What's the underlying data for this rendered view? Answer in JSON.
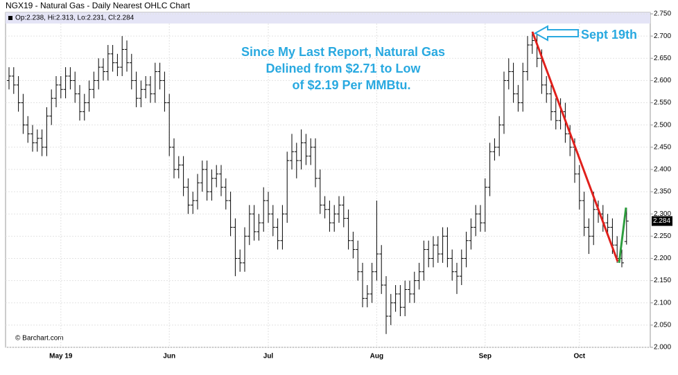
{
  "chart_data": {
    "type": "ohlc",
    "title": "NGX19 - Natural Gas - Daily Nearest OHLC Chart",
    "info": "Op:2.238, Hi:2.313, Lo:2.231, Cl:2.284",
    "credit": "© Barchart.com",
    "annotations": [
      "Since My Last Report, Natural Gas",
      "Delined from $2.71 to Low",
      "of $2.19 Per MMBtu.",
      "Sept 19th"
    ],
    "categories": [
      null,
      null,
      null,
      null,
      null,
      null,
      null,
      null,
      null,
      null,
      null,
      "May 19",
      null,
      null,
      null,
      null,
      null,
      null,
      null,
      null,
      null,
      null,
      null,
      null,
      null,
      null,
      null,
      null,
      null,
      null,
      null,
      null,
      null,
      null,
      "Jun",
      null,
      null,
      null,
      null,
      null,
      null,
      null,
      null,
      null,
      null,
      null,
      null,
      null,
      null,
      null,
      null,
      null,
      null,
      null,
      null,
      "Jul",
      null,
      null,
      null,
      null,
      null,
      null,
      null,
      null,
      null,
      null,
      null,
      null,
      null,
      null,
      null,
      null,
      null,
      null,
      null,
      null,
      null,
      null,
      "Aug",
      null,
      null,
      null,
      null,
      null,
      null,
      null,
      null,
      null,
      null,
      null,
      null,
      null,
      null,
      null,
      null,
      null,
      null,
      null,
      null,
      null,
      null,
      "Sep",
      null,
      null,
      null,
      null,
      null,
      null,
      null,
      null,
      null,
      null,
      null,
      null,
      null,
      null,
      null,
      null,
      null,
      null,
      null,
      "Oct",
      null,
      null,
      null,
      null,
      null,
      null,
      null,
      null,
      null,
      null
    ],
    "open": [
      2.6,
      2.61,
      2.59,
      2.55,
      2.5,
      2.48,
      2.46,
      2.47,
      2.45,
      2.52,
      2.56,
      2.59,
      2.58,
      2.61,
      2.6,
      2.57,
      2.53,
      2.55,
      2.58,
      2.6,
      2.63,
      2.62,
      2.66,
      2.64,
      2.63,
      2.67,
      2.64,
      2.6,
      2.56,
      2.58,
      2.59,
      2.57,
      2.62,
      2.6,
      2.55,
      2.45,
      2.4,
      2.41,
      2.36,
      2.32,
      2.33,
      2.37,
      2.4,
      2.35,
      2.38,
      2.39,
      2.36,
      2.33,
      2.27,
      2.2,
      2.19,
      2.25,
      2.3,
      2.26,
      2.28,
      2.33,
      2.3,
      2.27,
      2.24,
      2.3,
      2.42,
      2.44,
      2.42,
      2.46,
      2.43,
      2.45,
      2.38,
      2.32,
      2.31,
      2.28,
      2.3,
      2.32,
      2.29,
      2.24,
      2.22,
      2.17,
      2.11,
      2.12,
      2.17,
      2.21,
      2.14,
      2.07,
      2.1,
      2.12,
      2.09,
      2.13,
      2.12,
      2.15,
      2.17,
      2.22,
      2.2,
      2.23,
      2.21,
      2.25,
      2.2,
      2.17,
      2.16,
      2.2,
      2.24,
      2.27,
      2.3,
      2.28,
      2.36,
      2.44,
      2.45,
      2.5,
      2.6,
      2.62,
      2.57,
      2.55,
      2.62,
      2.68,
      2.69,
      2.65,
      2.59,
      2.57,
      2.53,
      2.51,
      2.53,
      2.48,
      2.45,
      2.39,
      2.33,
      2.27,
      2.25,
      2.31,
      2.3,
      2.28,
      2.27,
      2.23,
      2.2,
      2.238
    ],
    "high": [
      2.63,
      2.63,
      2.61,
      2.57,
      2.52,
      2.5,
      2.49,
      2.49,
      2.54,
      2.58,
      2.61,
      2.61,
      2.63,
      2.63,
      2.62,
      2.59,
      2.57,
      2.6,
      2.62,
      2.65,
      2.65,
      2.68,
      2.68,
      2.66,
      2.7,
      2.69,
      2.66,
      2.62,
      2.6,
      2.61,
      2.61,
      2.64,
      2.64,
      2.62,
      2.57,
      2.47,
      2.43,
      2.43,
      2.38,
      2.35,
      2.39,
      2.42,
      2.42,
      2.4,
      2.41,
      2.41,
      2.38,
      2.35,
      2.29,
      2.22,
      2.27,
      2.32,
      2.32,
      2.3,
      2.36,
      2.35,
      2.32,
      2.29,
      2.32,
      2.44,
      2.48,
      2.46,
      2.49,
      2.48,
      2.47,
      2.47,
      2.4,
      2.34,
      2.33,
      2.32,
      2.34,
      2.34,
      2.31,
      2.26,
      2.24,
      2.19,
      2.14,
      2.19,
      2.33,
      2.23,
      2.16,
      2.12,
      2.14,
      2.14,
      2.15,
      2.15,
      2.17,
      2.19,
      2.24,
      2.24,
      2.25,
      2.25,
      2.27,
      2.27,
      2.22,
      2.19,
      2.22,
      2.26,
      2.29,
      2.32,
      2.32,
      2.38,
      2.46,
      2.47,
      2.52,
      2.62,
      2.65,
      2.64,
      2.59,
      2.64,
      2.7,
      2.71,
      2.71,
      2.67,
      2.61,
      2.59,
      2.56,
      2.56,
      2.55,
      2.5,
      2.47,
      2.41,
      2.35,
      2.29,
      2.35,
      2.33,
      2.32,
      2.3,
      2.29,
      2.25,
      2.22,
      2.313
    ],
    "low": [
      2.58,
      2.57,
      2.53,
      2.48,
      2.46,
      2.44,
      2.44,
      2.43,
      2.43,
      2.5,
      2.54,
      2.56,
      2.56,
      2.58,
      2.55,
      2.51,
      2.51,
      2.53,
      2.56,
      2.58,
      2.6,
      2.6,
      2.62,
      2.61,
      2.61,
      2.62,
      2.58,
      2.54,
      2.54,
      2.56,
      2.55,
      2.55,
      2.58,
      2.53,
      2.43,
      2.38,
      2.38,
      2.34,
      2.3,
      2.3,
      2.31,
      2.35,
      2.33,
      2.33,
      2.36,
      2.34,
      2.31,
      2.25,
      2.16,
      2.17,
      2.17,
      2.23,
      2.24,
      2.24,
      2.26,
      2.28,
      2.25,
      2.22,
      2.22,
      2.28,
      2.4,
      2.38,
      2.4,
      2.41,
      2.41,
      2.36,
      2.3,
      2.29,
      2.26,
      2.26,
      2.28,
      2.27,
      2.22,
      2.2,
      2.15,
      2.09,
      2.09,
      2.1,
      2.15,
      2.12,
      2.03,
      2.05,
      2.08,
      2.07,
      2.07,
      2.1,
      2.1,
      2.13,
      2.15,
      2.18,
      2.18,
      2.19,
      2.19,
      2.18,
      2.15,
      2.12,
      2.14,
      2.18,
      2.22,
      2.25,
      2.26,
      2.26,
      2.34,
      2.42,
      2.43,
      2.48,
      2.58,
      2.55,
      2.53,
      2.53,
      2.6,
      2.66,
      2.63,
      2.57,
      2.55,
      2.51,
      2.49,
      2.49,
      2.46,
      2.43,
      2.37,
      2.31,
      2.25,
      2.21,
      2.23,
      2.28,
      2.26,
      2.25,
      2.21,
      2.19,
      2.18,
      2.231
    ],
    "close": [
      2.61,
      2.59,
      2.55,
      2.5,
      2.48,
      2.46,
      2.47,
      2.45,
      2.52,
      2.56,
      2.59,
      2.58,
      2.61,
      2.6,
      2.57,
      2.53,
      2.55,
      2.58,
      2.6,
      2.63,
      2.62,
      2.66,
      2.64,
      2.63,
      2.67,
      2.64,
      2.6,
      2.56,
      2.58,
      2.59,
      2.57,
      2.62,
      2.6,
      2.55,
      2.45,
      2.4,
      2.41,
      2.36,
      2.32,
      2.33,
      2.37,
      2.4,
      2.35,
      2.38,
      2.39,
      2.36,
      2.33,
      2.27,
      2.2,
      2.19,
      2.25,
      2.3,
      2.26,
      2.28,
      2.33,
      2.3,
      2.27,
      2.24,
      2.3,
      2.42,
      2.44,
      2.42,
      2.46,
      2.43,
      2.45,
      2.38,
      2.32,
      2.31,
      2.28,
      2.3,
      2.32,
      2.29,
      2.24,
      2.22,
      2.17,
      2.11,
      2.12,
      2.17,
      2.21,
      2.14,
      2.07,
      2.1,
      2.12,
      2.09,
      2.13,
      2.12,
      2.15,
      2.17,
      2.22,
      2.2,
      2.23,
      2.21,
      2.25,
      2.2,
      2.17,
      2.16,
      2.2,
      2.24,
      2.27,
      2.3,
      2.28,
      2.36,
      2.44,
      2.45,
      2.5,
      2.6,
      2.62,
      2.57,
      2.55,
      2.62,
      2.68,
      2.69,
      2.65,
      2.59,
      2.57,
      2.53,
      2.51,
      2.53,
      2.48,
      2.45,
      2.39,
      2.33,
      2.27,
      2.25,
      2.31,
      2.3,
      2.28,
      2.27,
      2.23,
      2.2,
      2.19,
      2.284
    ],
    "color": "#000000",
    "ylim": [
      2.0,
      2.75
    ],
    "yticks": [
      {
        "value": 2.0,
        "label": "2.000"
      },
      {
        "value": 2.05,
        "label": "2.050"
      },
      {
        "value": 2.1,
        "label": "2.100"
      },
      {
        "value": 2.15,
        "label": "2.150"
      },
      {
        "value": 2.2,
        "label": "2.200"
      },
      {
        "value": 2.25,
        "label": "2.250"
      },
      {
        "value": 2.3,
        "label": "2.300"
      },
      {
        "value": 2.35,
        "label": "2.350"
      },
      {
        "value": 2.4,
        "label": "2.400"
      },
      {
        "value": 2.45,
        "label": "2.450"
      },
      {
        "value": 2.5,
        "label": "2.500"
      },
      {
        "value": 2.55,
        "label": "2.550"
      },
      {
        "value": 2.6,
        "label": "2.600"
      },
      {
        "value": 2.65,
        "label": "2.650"
      },
      {
        "value": 2.7,
        "label": "2.700"
      },
      {
        "value": 2.75,
        "label": "2.750"
      }
    ],
    "grid": true
  }
}
